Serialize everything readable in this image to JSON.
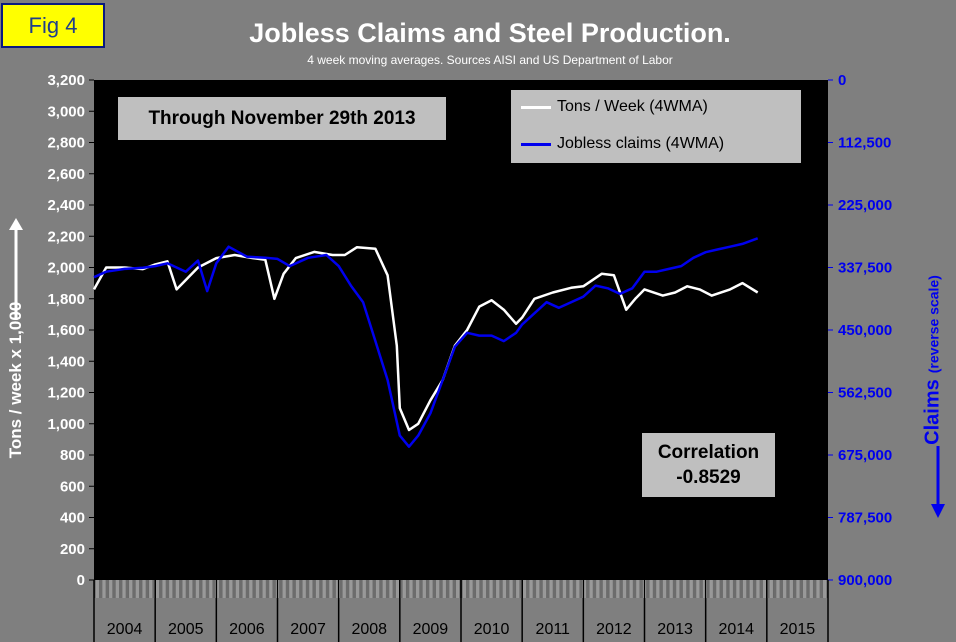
{
  "badge": "Fig 4",
  "title": "Jobless Claims and Steel Production.",
  "subtitle": "4 week moving averages. Sources AISI and US Department of Labor",
  "through_label": "Through November 29th 2013",
  "correlation": {
    "label": "Correlation",
    "value": "-0.8529"
  },
  "colors": {
    "background": "#7f7f7f",
    "plot": "#000000",
    "tons": "#ffffff",
    "claims": "#0000ee",
    "box": "#bfbfbf"
  },
  "chart_data": {
    "type": "line",
    "title": "Jobless Claims and Steel Production.",
    "subtitle": "4 week moving averages. Sources AISI and US Department of Labor",
    "ylabel": "Tons / week x 1,000",
    "y2label": "Claims",
    "y2label_note": "(reverse scale)",
    "ylim": [
      0,
      3200
    ],
    "y2lim": [
      0,
      900000
    ],
    "y2_reversed": true,
    "yticks": [
      "0",
      "200",
      "400",
      "600",
      "800",
      "1,000",
      "1,200",
      "1,400",
      "1,600",
      "1,800",
      "2,000",
      "2,200",
      "2,400",
      "2,600",
      "2,800",
      "3,000",
      "3,200"
    ],
    "y2ticks": [
      "0",
      "112,500",
      "225,000",
      "337,500",
      "450,000",
      "562,500",
      "675,000",
      "787,500",
      "900,000"
    ],
    "x_categories": [
      "2004",
      "2005",
      "2006",
      "2007",
      "2008",
      "2009",
      "2010",
      "2011",
      "2012",
      "2013",
      "2014",
      "2015"
    ],
    "xlim": [
      2004.0,
      2016.0
    ],
    "grid": false,
    "legend": "top-right",
    "series": [
      {
        "name": "Tons / Week (4WMA)",
        "axis": "left",
        "color": "#ffffff",
        "x": [
          2004.0,
          2004.2,
          2004.5,
          2004.8,
          2005.0,
          2005.2,
          2005.35,
          2005.5,
          2005.7,
          2006.0,
          2006.3,
          2006.6,
          2006.8,
          2006.95,
          2007.1,
          2007.3,
          2007.6,
          2007.9,
          2008.1,
          2008.3,
          2008.6,
          2008.8,
          2008.95,
          2009.0,
          2009.15,
          2009.3,
          2009.5,
          2009.7,
          2009.9,
          2010.1,
          2010.3,
          2010.5,
          2010.7,
          2010.9,
          2011.0,
          2011.2,
          2011.5,
          2011.8,
          2012.0,
          2012.3,
          2012.5,
          2012.7,
          2012.85,
          2013.0,
          2013.3,
          2013.5,
          2013.7,
          2013.9,
          2014.1,
          2014.4,
          2014.6,
          2014.85
        ],
        "y": [
          1860,
          2000,
          2000,
          1990,
          2020,
          2040,
          1860,
          1920,
          2000,
          2060,
          2080,
          2060,
          2050,
          1800,
          1960,
          2060,
          2100,
          2080,
          2080,
          2130,
          2120,
          1950,
          1500,
          1100,
          960,
          1000,
          1150,
          1280,
          1500,
          1600,
          1750,
          1790,
          1730,
          1640,
          1680,
          1800,
          1840,
          1870,
          1880,
          1960,
          1950,
          1730,
          1800,
          1860,
          1820,
          1840,
          1880,
          1860,
          1820,
          1860,
          1900,
          1840
        ]
      },
      {
        "name": "Jobless claims (4WMA)",
        "axis": "right",
        "color": "#0000ee",
        "x": [
          2004.0,
          2004.2,
          2004.5,
          2004.8,
          2005.0,
          2005.2,
          2005.5,
          2005.7,
          2005.85,
          2006.0,
          2006.2,
          2006.5,
          2006.8,
          2007.0,
          2007.2,
          2007.5,
          2007.8,
          2008.0,
          2008.2,
          2008.4,
          2008.6,
          2008.8,
          2009.0,
          2009.15,
          2009.3,
          2009.5,
          2009.7,
          2009.9,
          2010.1,
          2010.3,
          2010.5,
          2010.7,
          2010.9,
          2011.0,
          2011.2,
          2011.4,
          2011.6,
          2011.8,
          2012.0,
          2012.2,
          2012.4,
          2012.6,
          2012.8,
          2013.0,
          2013.2,
          2013.4,
          2013.6,
          2013.8,
          2014.0,
          2014.2,
          2014.4,
          2014.6,
          2014.85
        ],
        "y": [
          355000,
          345000,
          340000,
          338000,
          335000,
          330000,
          345000,
          325000,
          380000,
          330000,
          300000,
          318000,
          320000,
          322000,
          335000,
          320000,
          315000,
          335000,
          370000,
          400000,
          470000,
          540000,
          640000,
          660000,
          640000,
          600000,
          540000,
          480000,
          455000,
          460000,
          460000,
          470000,
          455000,
          440000,
          420000,
          400000,
          410000,
          400000,
          390000,
          370000,
          375000,
          385000,
          375000,
          345000,
          345000,
          340000,
          335000,
          320000,
          310000,
          305000,
          300000,
          295000,
          285000
        ]
      }
    ]
  }
}
